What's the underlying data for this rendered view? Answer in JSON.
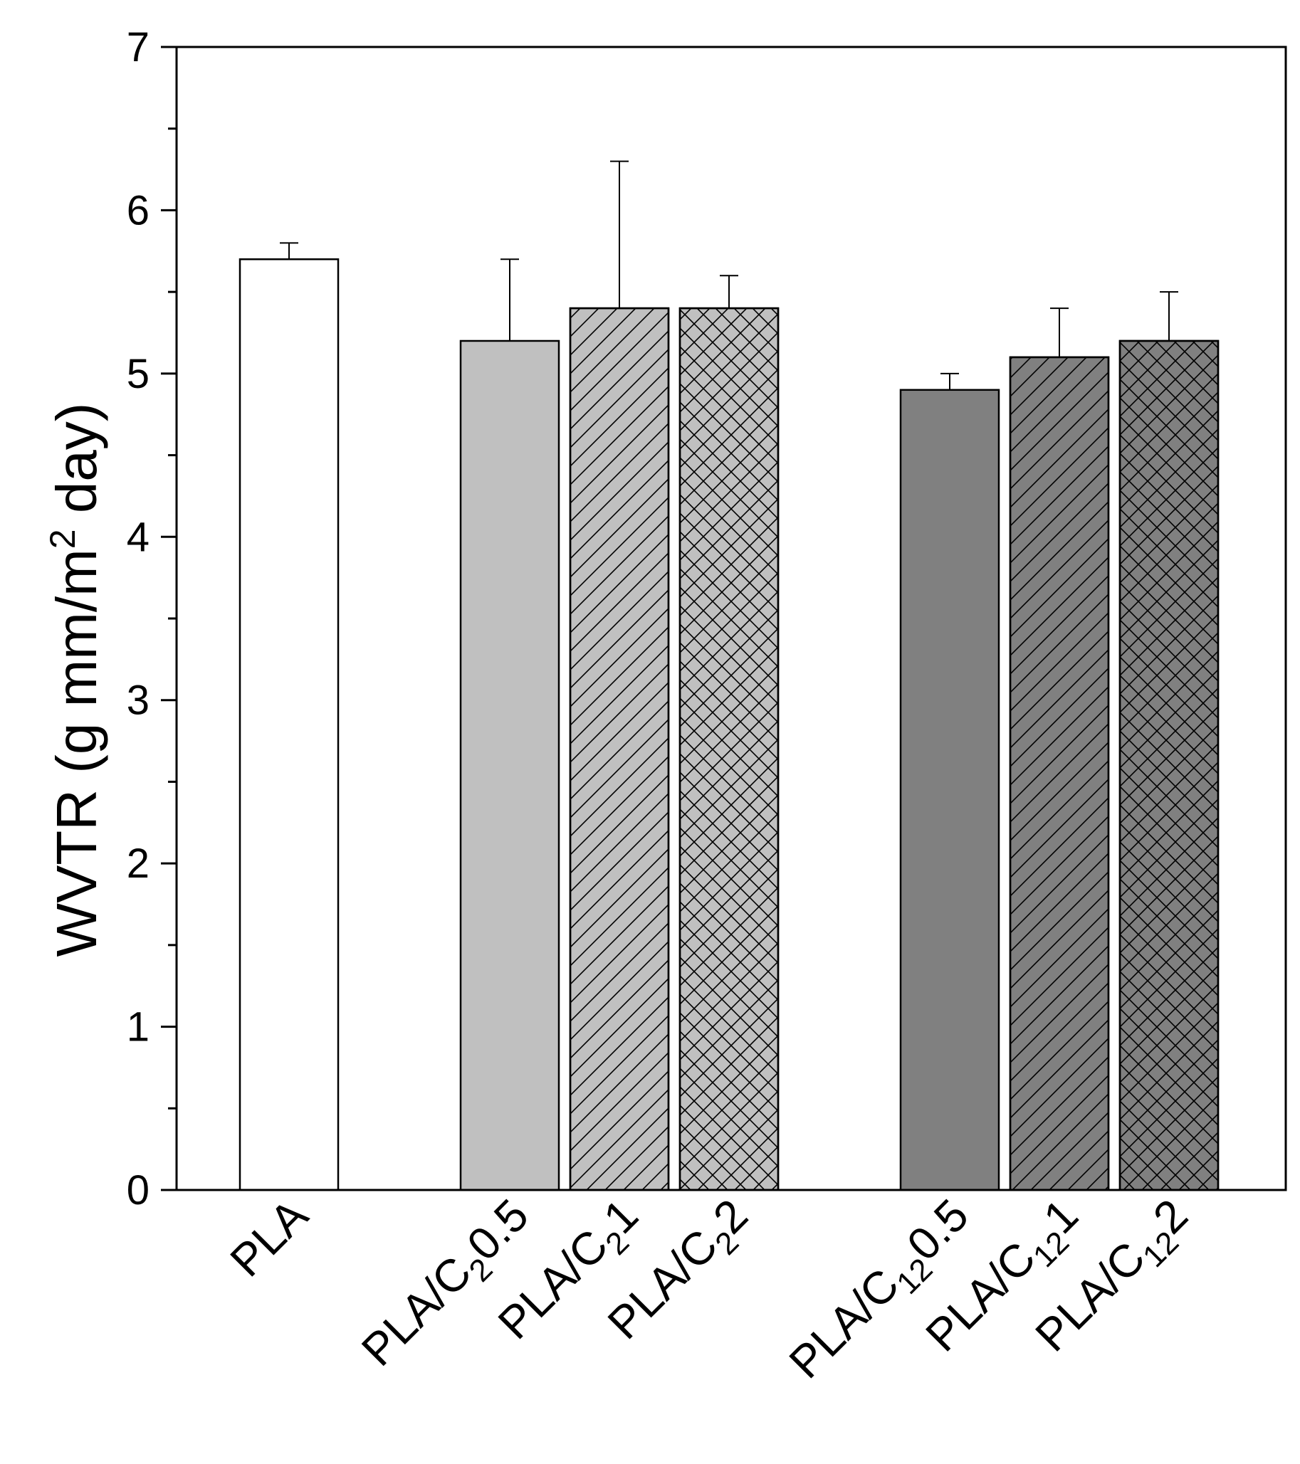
{
  "chart_data": {
    "type": "bar",
    "title": "",
    "xlabel": "",
    "ylabel": {
      "before": "WVTR (g mm/m",
      "superscript": "2",
      "after": " day)"
    },
    "ylim": [
      0,
      7
    ],
    "yticks": [
      0,
      1,
      2,
      3,
      4,
      5,
      6,
      7
    ],
    "grid": false,
    "legend": "none",
    "categories": [
      {
        "prefix": "PLA",
        "sub": "",
        "suffix": ""
      },
      {
        "prefix": "PLA/C",
        "sub": "2",
        "suffix": "0.5"
      },
      {
        "prefix": "PLA/C",
        "sub": "2",
        "suffix": "1"
      },
      {
        "prefix": "PLA/C",
        "sub": "2",
        "suffix": "2"
      },
      {
        "prefix": "PLA/C",
        "sub": "12",
        "suffix": "0.5"
      },
      {
        "prefix": "PLA/C",
        "sub": "12",
        "suffix": "1"
      },
      {
        "prefix": "PLA/C",
        "sub": "12",
        "suffix": "2"
      }
    ],
    "values": [
      5.7,
      5.2,
      5.4,
      5.4,
      4.9,
      5.1,
      5.2
    ],
    "errors": [
      0.1,
      0.5,
      0.9,
      0.2,
      0.1,
      0.3,
      0.3
    ],
    "groups": [
      [
        0
      ],
      [
        1,
        2,
        3
      ],
      [
        4,
        5,
        6
      ]
    ],
    "fills": [
      "#ffffff",
      "#c0c0c0",
      "#c0c0c0",
      "#c0c0c0",
      "#808080",
      "#808080",
      "#808080"
    ],
    "patterns": [
      "none",
      "none",
      "diagonal",
      "crosshatch",
      "none",
      "diagonal",
      "crosshatch"
    ]
  }
}
